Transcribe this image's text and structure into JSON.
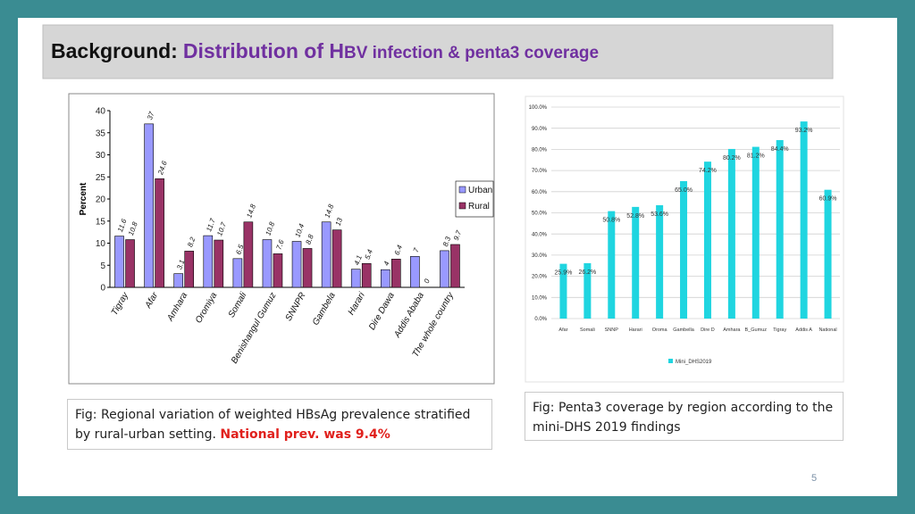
{
  "slide_title": {
    "label": "Background:",
    "main_large": "Distribution of H",
    "main_small": "BV infection & penta3 coverage"
  },
  "chart_data": [
    {
      "type": "bar",
      "ylabel": "Percent",
      "categories": [
        "Tigray",
        "Afar",
        "Amhara",
        "Oromiya",
        "Somali",
        "Benishangul Gumuz",
        "SNNPR",
        "Gambela",
        "Harari",
        "Dire Dawa",
        "Addis Ababa",
        "The whole country"
      ],
      "series": [
        {
          "name": "Urban",
          "color": "#9999ff",
          "values": [
            11.6,
            37,
            3.1,
            11.7,
            6.5,
            10.8,
            10.4,
            14.8,
            4.1,
            4,
            7,
            8.3
          ]
        },
        {
          "name": "Rural",
          "color": "#993366",
          "values": [
            10.8,
            24.6,
            8.2,
            10.7,
            14.8,
            7.6,
            8.8,
            13,
            5.4,
            6.4,
            0,
            9.7
          ]
        }
      ],
      "ylim": [
        0,
        40
      ],
      "yticks": [
        0,
        5,
        10,
        15,
        20,
        25,
        30,
        35,
        40
      ],
      "grid": false,
      "legend": "right"
    },
    {
      "type": "bar",
      "categories": [
        "Afar",
        "Somali",
        "SNNP",
        "Harari",
        "Oroma",
        "Gambella",
        "Dire D",
        "Amhara",
        "B_Gumuz",
        "Tigray",
        "Addis A",
        "National"
      ],
      "series": [
        {
          "name": "Mini_DHS2019",
          "color": "#1fd5e0",
          "values": [
            25.9,
            26.2,
            50.8,
            52.8,
            53.6,
            65.0,
            74.2,
            80.2,
            81.2,
            84.4,
            93.2,
            60.9
          ],
          "value_labels": [
            "25.9%",
            "26.2%",
            "50.8%",
            "52.8%",
            "53.6%",
            "65.0%",
            "74.2%",
            "80.2%",
            "81.2%",
            "84.4%",
            "93.2%",
            "60.9%"
          ]
        }
      ],
      "ylim": [
        0,
        100
      ],
      "yticks": [
        {
          "value": 0,
          "label": "0.0%"
        },
        {
          "value": 10,
          "label": "10.0%"
        },
        {
          "value": 20,
          "label": "20.0%"
        },
        {
          "value": 30,
          "label": "30.0%"
        },
        {
          "value": 40,
          "label": "40.0%"
        },
        {
          "value": 50,
          "label": "50.0%"
        },
        {
          "value": 60,
          "label": "60.0%"
        },
        {
          "value": 70,
          "label": "70.0%"
        },
        {
          "value": 80,
          "label": "80.0%"
        },
        {
          "value": 90,
          "label": "90.0%"
        },
        {
          "value": 100,
          "label": "100.0%"
        }
      ],
      "grid": true,
      "legend": "bottom"
    }
  ],
  "captions": [
    {
      "text": "Fig: Regional variation of weighted HBsAg prevalence stratified by rural-urban setting.",
      "highlight": "National prev. was 9.4%"
    },
    {
      "text": "Fig: Penta3 coverage by region according to the mini-DHS 2019 findings"
    }
  ],
  "page_number": "5"
}
